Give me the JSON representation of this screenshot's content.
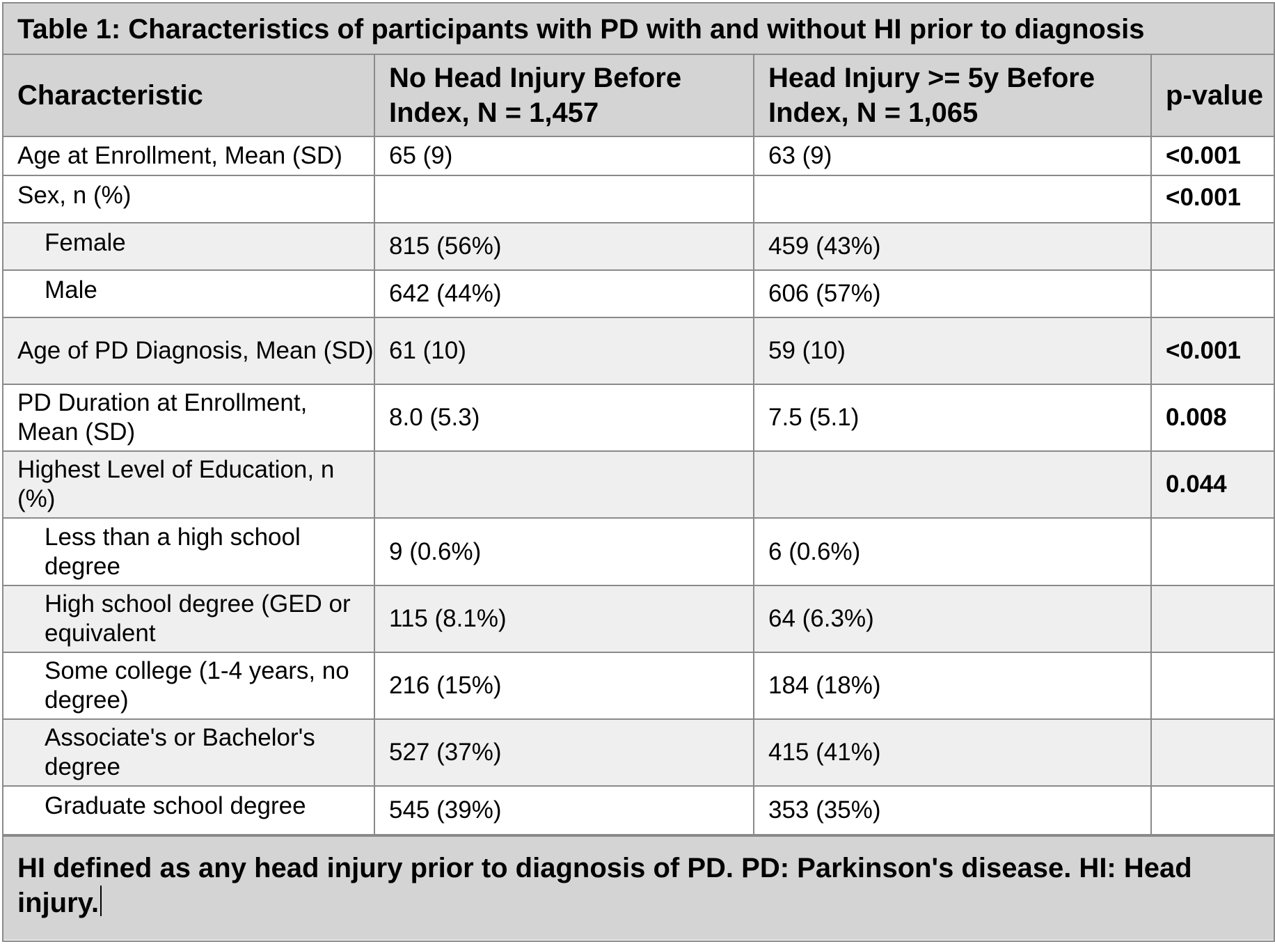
{
  "table": {
    "title": "Table 1: Characteristics of participants with PD with and without HI prior to diagnosis",
    "headers": [
      "Characteristic",
      "No Head Injury Before Index, N = 1,457",
      "Head Injury >= 5y Before Index, N = 1,065",
      "p-value"
    ],
    "rows": [
      {
        "label": "Age at Enrollment, Mean (SD)",
        "no_hi": "65 (9)",
        "hi": "63 (9)",
        "p": "<0.001"
      },
      {
        "label": "Sex, n (%)",
        "no_hi": "",
        "hi": "",
        "p": "<0.001"
      },
      {
        "label": "Female",
        "no_hi": "815 (56%)",
        "hi": "459 (43%)",
        "p": ""
      },
      {
        "label": "Male",
        "no_hi": "642 (44%)",
        "hi": "606 (57%)",
        "p": ""
      },
      {
        "label": "Age of PD Diagnosis, Mean (SD)",
        "no_hi": "61 (10)",
        "hi": "59 (10)",
        "p": "<0.001"
      },
      {
        "label": "PD Duration at Enrollment, Mean (SD)",
        "no_hi": "8.0 (5.3)",
        "hi": "7.5 (5.1)",
        "p": "0.008"
      },
      {
        "label": "Highest Level of Education, n (%)",
        "no_hi": "",
        "hi": "",
        "p": "0.044"
      },
      {
        "label": "Less than a high school degree",
        "no_hi": "9 (0.6%)",
        "hi": "6 (0.6%)",
        "p": ""
      },
      {
        "label": "High school degree (GED or equivalent",
        "no_hi": "115 (8.1%)",
        "hi": "64 (6.3%)",
        "p": ""
      },
      {
        "label": "Some college (1-4 years, no degree)",
        "no_hi": "216 (15%)",
        "hi": "184 (18%)",
        "p": ""
      },
      {
        "label": "Associate's or Bachelor's degree",
        "no_hi": "527 (37%)",
        "hi": "415 (41%)",
        "p": ""
      },
      {
        "label": "Graduate school degree",
        "no_hi": "545 (39%)",
        "hi": "353 (35%)",
        "p": ""
      }
    ],
    "footnote": "HI defined as any head injury prior to diagnosis of PD. PD: Parkinson's disease. HI: Head injury."
  },
  "colors": {
    "header_background": "#d4d4d4",
    "alternate_row_background": "#efefef",
    "border": "#8a8a8a"
  }
}
